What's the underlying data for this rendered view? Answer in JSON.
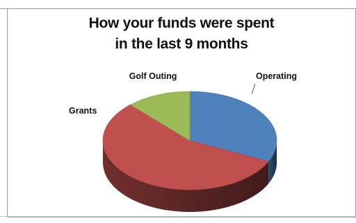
{
  "chart_data": {
    "type": "pie",
    "title_lines": [
      "How your funds were spent",
      "in the last 9 months"
    ],
    "slices": [
      {
        "label": "Operating",
        "value": 32,
        "color": "#4F81BD"
      },
      {
        "label": "Grants",
        "value": 56,
        "color": "#C0504D"
      },
      {
        "label": "Golf Outing",
        "value": 12,
        "color": "#9BBB59"
      }
    ],
    "style": "3d",
    "legend": "none",
    "grid": false
  }
}
